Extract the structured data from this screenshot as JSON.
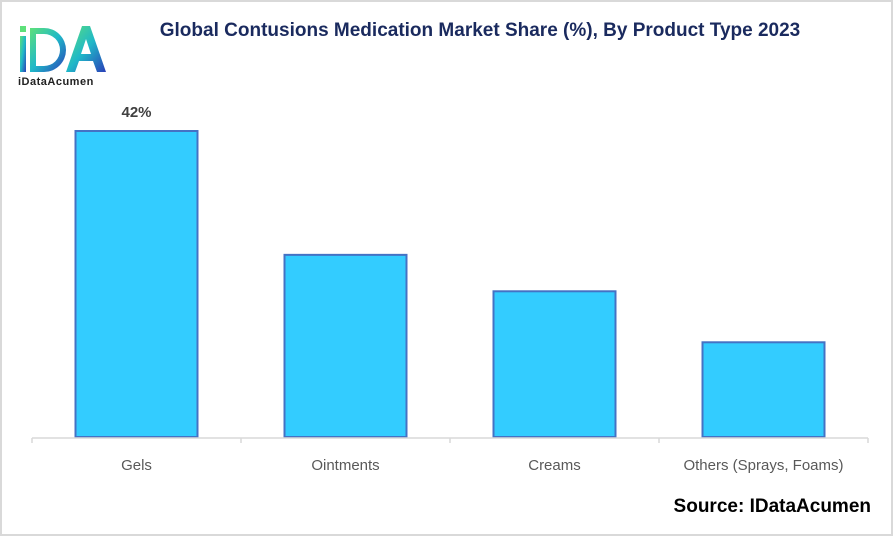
{
  "logo": {
    "initials": "iDA",
    "name": "iDataAcumen"
  },
  "chart_data": {
    "type": "bar",
    "title": "Global Contusions Medication Market Share (%), By Product Type 2023",
    "categories": [
      "Gels",
      "Ointments",
      "Creams",
      "Others (Sprays, Foams)"
    ],
    "values": [
      42,
      25,
      20,
      13
    ],
    "data_labels": [
      "42%",
      "",
      "",
      ""
    ],
    "xlabel": "",
    "ylabel": "",
    "ylim": [
      0,
      42
    ],
    "grid": false,
    "legend": "none",
    "bar_color": "#33ccff",
    "bar_border_color": "#4472c4",
    "source": "Source: IDataAcumen"
  }
}
